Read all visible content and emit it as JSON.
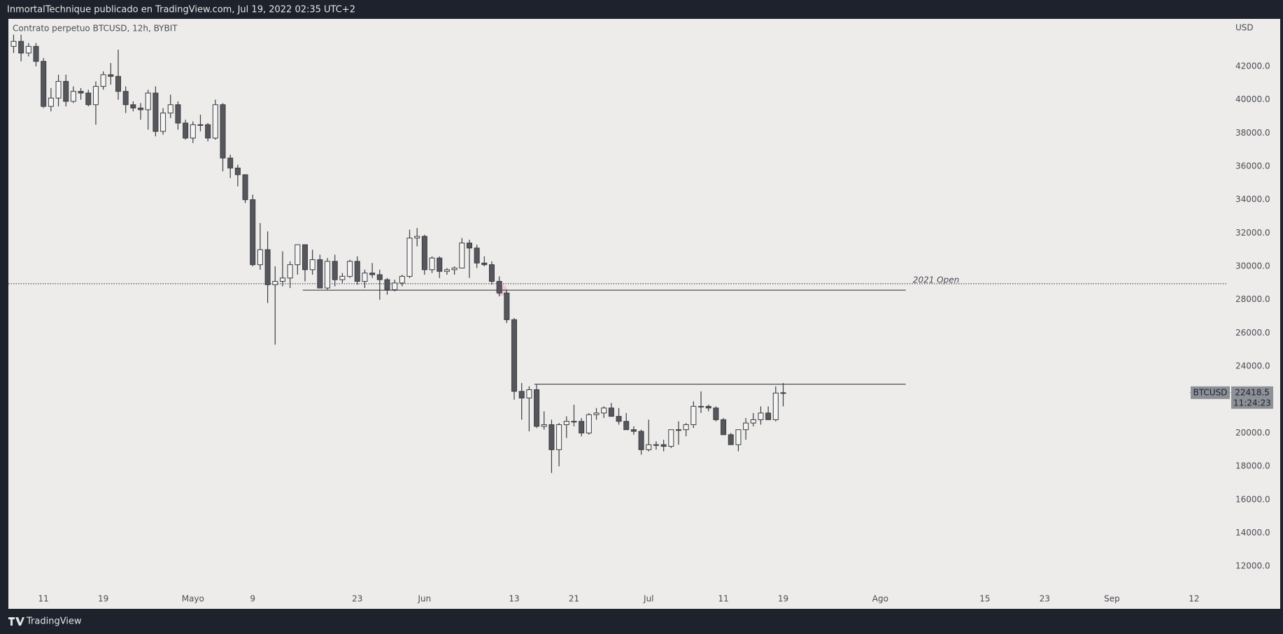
{
  "header": "InmortalTechnique publicado en TradingView.com, Jul 19, 2022 02:35 UTC+2",
  "footer": "TradingView",
  "chart_data": {
    "type": "candlestick",
    "legend": "Contrato perpetuo BTCUSD, 12h, BYBIT",
    "currency": "USD",
    "symbol": "BTCUSD",
    "last_price": 22418.5,
    "countdown": "11:24:23",
    "up_color": "#f4f4f4",
    "down_color": "#55575c",
    "border_color": "#3b3d42",
    "ylim": [
      9450,
      44850
    ],
    "yticks": [
      {
        "value": 12000,
        "label": "12000.0"
      },
      {
        "value": 14000,
        "label": "14000.0"
      },
      {
        "value": 16000,
        "label": "16000.0"
      },
      {
        "value": 18000,
        "label": "18000.0"
      },
      {
        "value": 20000,
        "label": "20000.0"
      },
      {
        "value": 22000,
        "label": "22000.0"
      },
      {
        "value": 24000,
        "label": "24000.0"
      },
      {
        "value": 26000,
        "label": "26000.0"
      },
      {
        "value": 28000,
        "label": "28000.0"
      },
      {
        "value": 30000,
        "label": "30000.0"
      },
      {
        "value": 32000,
        "label": "32000.0"
      },
      {
        "value": 34000,
        "label": "34000.0"
      },
      {
        "value": 36000,
        "label": "36000.0"
      },
      {
        "value": 38000,
        "label": "38000.0"
      },
      {
        "value": 40000,
        "label": "40000.0"
      },
      {
        "value": 42000,
        "label": "42000.0"
      }
    ],
    "xlim": [
      -0.7,
      162.5
    ],
    "xticks": [
      {
        "value": 4,
        "label": "11"
      },
      {
        "value": 12,
        "label": "19"
      },
      {
        "value": 24,
        "label": "Mayo"
      },
      {
        "value": 32,
        "label": "9"
      },
      {
        "value": 46,
        "label": "23"
      },
      {
        "value": 55,
        "label": "Jun"
      },
      {
        "value": 67,
        "label": "13"
      },
      {
        "value": 75,
        "label": "21"
      },
      {
        "value": 85,
        "label": "Jul"
      },
      {
        "value": 95,
        "label": "11"
      },
      {
        "value": 103,
        "label": "19"
      },
      {
        "value": 116,
        "label": "Ago"
      },
      {
        "value": 130,
        "label": "15"
      },
      {
        "value": 138,
        "label": "23"
      },
      {
        "value": 147,
        "label": "Sep"
      },
      {
        "value": 158,
        "label": "12"
      }
    ],
    "hlines": [
      {
        "value": 28960,
        "label": "2021 Open",
        "style": "dotted"
      },
      {
        "value": 28570,
        "from": 38.7,
        "to": 119.4,
        "style": "solid"
      },
      {
        "value": 22930,
        "from": 69.7,
        "to": 119.4,
        "style": "solid"
      }
    ],
    "ohlc": [
      [
        43200,
        43900,
        42800,
        43500
      ],
      [
        43500,
        43900,
        42300,
        42800
      ],
      [
        42800,
        43400,
        42600,
        43200
      ],
      [
        43200,
        43400,
        42000,
        42300
      ],
      [
        42300,
        42500,
        39500,
        39600
      ],
      [
        39600,
        40700,
        39300,
        40100
      ],
      [
        40100,
        41500,
        39600,
        41100
      ],
      [
        41100,
        41500,
        39600,
        39900
      ],
      [
        39900,
        40800,
        39800,
        40500
      ],
      [
        40500,
        40700,
        40000,
        40400
      ],
      [
        40400,
        40600,
        39600,
        39700
      ],
      [
        39700,
        41100,
        38500,
        40800
      ],
      [
        40800,
        41700,
        40600,
        41500
      ],
      [
        41500,
        42200,
        40900,
        41400
      ],
      [
        41400,
        43000,
        40000,
        40500
      ],
      [
        40500,
        40800,
        39200,
        39700
      ],
      [
        39700,
        39900,
        39300,
        39500
      ],
      [
        39500,
        39800,
        38800,
        39400
      ],
      [
        39400,
        40600,
        38200,
        40400
      ],
      [
        40400,
        40800,
        37800,
        38100
      ],
      [
        38100,
        39500,
        37900,
        39200
      ],
      [
        39200,
        40300,
        38900,
        39700
      ],
      [
        39700,
        39900,
        38200,
        38600
      ],
      [
        38600,
        38800,
        37600,
        37700
      ],
      [
        37700,
        38700,
        37400,
        38500
      ],
      [
        38500,
        39100,
        38100,
        38500
      ],
      [
        38500,
        38600,
        37500,
        37700
      ],
      [
        37700,
        40000,
        37600,
        39700
      ],
      [
        39700,
        39800,
        35700,
        36500
      ],
      [
        36500,
        36700,
        35300,
        35900
      ],
      [
        35900,
        36100,
        34800,
        35500
      ],
      [
        35500,
        35500,
        33800,
        34000
      ],
      [
        34000,
        34300,
        30000,
        30100
      ],
      [
        30100,
        32600,
        29800,
        31000
      ],
      [
        31000,
        32100,
        27800,
        28900
      ],
      [
        28900,
        30000,
        25300,
        29100
      ],
      [
        29100,
        30900,
        28800,
        29300
      ],
      [
        29300,
        30300,
        28700,
        30100
      ],
      [
        30100,
        31300,
        29500,
        31300
      ],
      [
        31300,
        31300,
        29100,
        29800
      ],
      [
        29800,
        31000,
        29500,
        30400
      ],
      [
        30400,
        30700,
        28700,
        28700
      ],
      [
        28700,
        30500,
        28600,
        30300
      ],
      [
        30300,
        30700,
        28800,
        29200
      ],
      [
        29200,
        29600,
        29000,
        29400
      ],
      [
        29400,
        30400,
        29300,
        30300
      ],
      [
        30300,
        30600,
        28900,
        29100
      ],
      [
        29100,
        29800,
        28700,
        29600
      ],
      [
        29600,
        30200,
        29300,
        29500
      ],
      [
        29500,
        29800,
        28000,
        29200
      ],
      [
        29200,
        29300,
        28300,
        28600
      ],
      [
        28600,
        29200,
        28500,
        29000
      ],
      [
        29000,
        29500,
        28800,
        29400
      ],
      [
        29400,
        32200,
        29300,
        31700
      ],
      [
        31700,
        32300,
        31200,
        31800
      ],
      [
        31800,
        31900,
        29500,
        29800
      ],
      [
        29800,
        30600,
        29600,
        30500
      ],
      [
        30500,
        30600,
        29300,
        29700
      ],
      [
        29700,
        29900,
        29500,
        29800
      ],
      [
        29800,
        30000,
        29500,
        29900
      ],
      [
        29900,
        31700,
        29900,
        31400
      ],
      [
        31400,
        31600,
        29300,
        31100
      ],
      [
        31100,
        31300,
        29900,
        30200
      ],
      [
        30200,
        30600,
        30000,
        30100
      ],
      [
        30100,
        30300,
        28900,
        29100
      ],
      [
        29100,
        29400,
        28200,
        28400
      ],
      [
        28400,
        28600,
        26600,
        26800
      ],
      [
        26800,
        26900,
        22000,
        22500
      ],
      [
        22500,
        23000,
        20800,
        22100
      ],
      [
        22100,
        22800,
        20100,
        22600
      ],
      [
        22600,
        22900,
        20300,
        20400
      ],
      [
        20400,
        21300,
        20200,
        20500
      ],
      [
        20500,
        20800,
        17600,
        19000
      ],
      [
        19000,
        20600,
        18000,
        20500
      ],
      [
        20500,
        21000,
        19700,
        20700
      ],
      [
        20700,
        21700,
        20400,
        20700
      ],
      [
        20700,
        20900,
        19800,
        20000
      ],
      [
        20000,
        21200,
        19900,
        21100
      ],
      [
        21100,
        21500,
        20800,
        21200
      ],
      [
        21200,
        21600,
        20900,
        21500
      ],
      [
        21500,
        21800,
        21000,
        21000
      ],
      [
        21000,
        21500,
        20500,
        20700
      ],
      [
        20700,
        21200,
        20200,
        20200
      ],
      [
        20200,
        20400,
        19900,
        20100
      ],
      [
        20100,
        20200,
        18700,
        19000
      ],
      [
        19000,
        20800,
        18900,
        19300
      ],
      [
        19300,
        19500,
        19000,
        19300
      ],
      [
        19300,
        19600,
        18900,
        19200
      ],
      [
        19200,
        20200,
        19100,
        20200
      ],
      [
        20200,
        20700,
        19300,
        20200
      ],
      [
        20200,
        20600,
        19800,
        20500
      ],
      [
        20500,
        21900,
        20300,
        21600
      ],
      [
        21600,
        22500,
        21200,
        21600
      ],
      [
        21600,
        21700,
        21300,
        21500
      ],
      [
        21500,
        21600,
        20700,
        20800
      ],
      [
        20800,
        20900,
        19900,
        19900
      ],
      [
        19900,
        20000,
        19300,
        19300
      ],
      [
        19300,
        20200,
        18900,
        20200
      ],
      [
        20200,
        20900,
        19600,
        20600
      ],
      [
        20600,
        21200,
        20400,
        20800
      ],
      [
        20800,
        21600,
        20500,
        21200
      ],
      [
        21200,
        21600,
        20800,
        20800
      ],
      [
        20800,
        22800,
        20700,
        22400
      ],
      [
        22400,
        23000,
        21600,
        22418.5
      ]
    ]
  }
}
